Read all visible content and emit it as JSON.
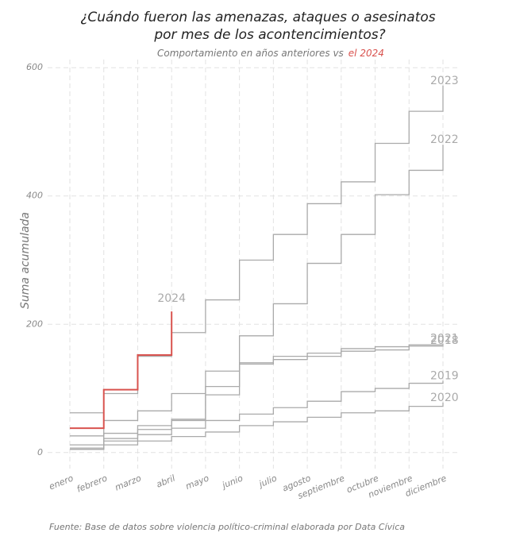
{
  "chart_data": {
    "type": "step",
    "title": [
      "¿Cuándo fueron las amenazas, ataques o asesinatos",
      "por mes de los acontencimientos?"
    ],
    "subtitle": [
      "Comportamiento en años anteriores vs",
      "el 2024"
    ],
    "y_label": "Suma acumulada",
    "source": "Fuente: Base de datos sobre violencia político-criminal elaborada por Data Cívica",
    "categories": [
      "enero",
      "febrero",
      "marzo",
      "abril",
      "mayo",
      "junio",
      "julio",
      "agosto",
      "septiembre",
      "octubre",
      "noviembre",
      "diciembre"
    ],
    "ylim": [
      -25,
      625
    ],
    "yticks": [
      0,
      200,
      400,
      600
    ],
    "grid": true,
    "series": [
      {
        "name": "2023",
        "color": "#aaaaaa",
        "values": [
          62,
          92,
          150,
          187,
          238,
          300,
          340,
          388,
          422,
          482,
          532,
          572
        ]
      },
      {
        "name": "2022",
        "color": "#aaaaaa",
        "values": [
          26,
          50,
          65,
          92,
          127,
          182,
          232,
          295,
          340,
          402,
          440,
          480
        ]
      },
      {
        "name": "2021",
        "color": "#aaaaaa",
        "values": [
          12,
          30,
          42,
          52,
          90,
          138,
          150,
          155,
          162,
          165,
          168,
          170
        ]
      },
      {
        "name": "2018",
        "color": "#aaaaaa",
        "values": [
          7,
          22,
          36,
          50,
          103,
          140,
          145,
          150,
          158,
          160,
          166,
          167
        ]
      },
      {
        "name": "2019",
        "color": "#aaaaaa",
        "values": [
          5,
          18,
          28,
          38,
          50,
          60,
          70,
          80,
          95,
          100,
          108,
          112
        ]
      },
      {
        "name": "2020",
        "color": "#aaaaaa",
        "values": [
          5,
          12,
          18,
          25,
          32,
          42,
          48,
          55,
          62,
          65,
          72,
          78
        ]
      },
      {
        "name": "2024",
        "color": "#d9534f",
        "values": [
          38,
          98,
          152,
          220,
          null,
          null,
          null,
          null,
          null,
          null,
          null,
          null
        ]
      }
    ]
  }
}
